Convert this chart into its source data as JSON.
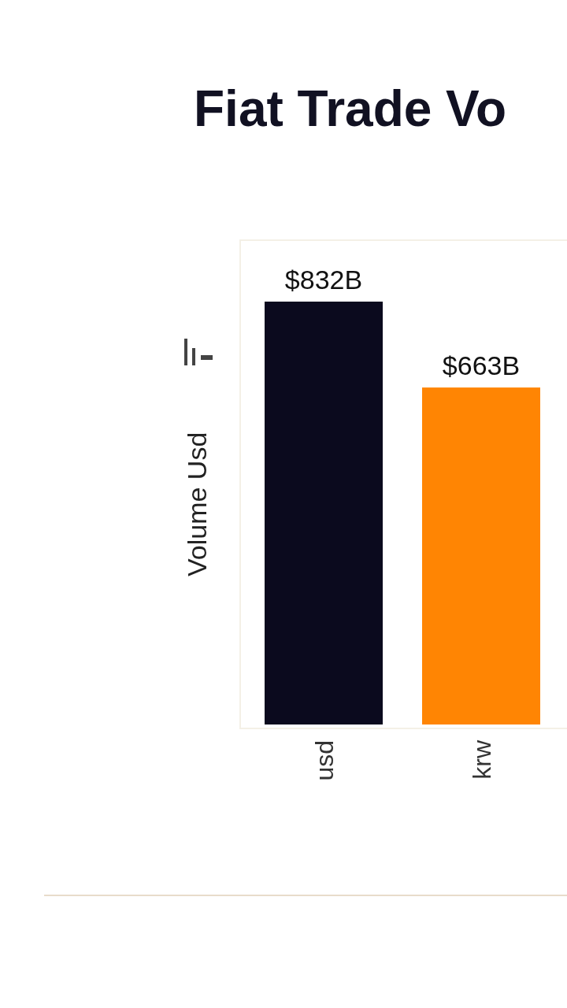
{
  "chart_data": {
    "type": "bar",
    "title": "Fiat Trade Vo",
    "ylabel": "Volume Usd",
    "categories": [
      "usd",
      "krw"
    ],
    "values": [
      832,
      663
    ],
    "value_labels": [
      "$832B",
      "$663B"
    ],
    "colors": [
      "#0b0a1e",
      "#ff8503"
    ]
  }
}
